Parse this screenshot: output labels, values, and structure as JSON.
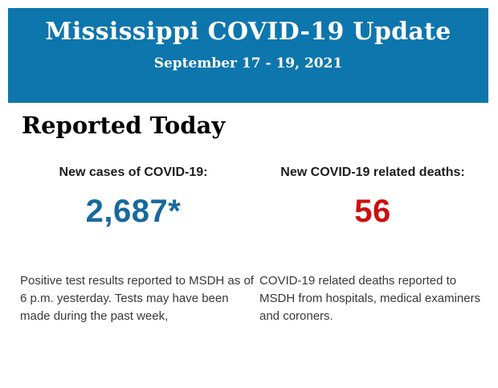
{
  "banner": {
    "title": "Mississippi COVID-19 Update",
    "date_range": "September 17 - 19, 2021",
    "background_color": "#0d76ad",
    "text_color": "#ffffff"
  },
  "section": {
    "heading": "Reported Today"
  },
  "stats": [
    {
      "label": "New cases of COVID-19:",
      "value": "2,687*",
      "value_color": "#17699f",
      "description": "Positive test results reported to MSDH as of 6 p.m. yesterday. Tests may have been made during the past week,"
    },
    {
      "label": "New COVID-19 related deaths:",
      "value": "56",
      "value_color": "#cc1010",
      "description": "COVID-19 related deaths reported to MSDH from hospitals, medical examiners and coroners."
    }
  ]
}
